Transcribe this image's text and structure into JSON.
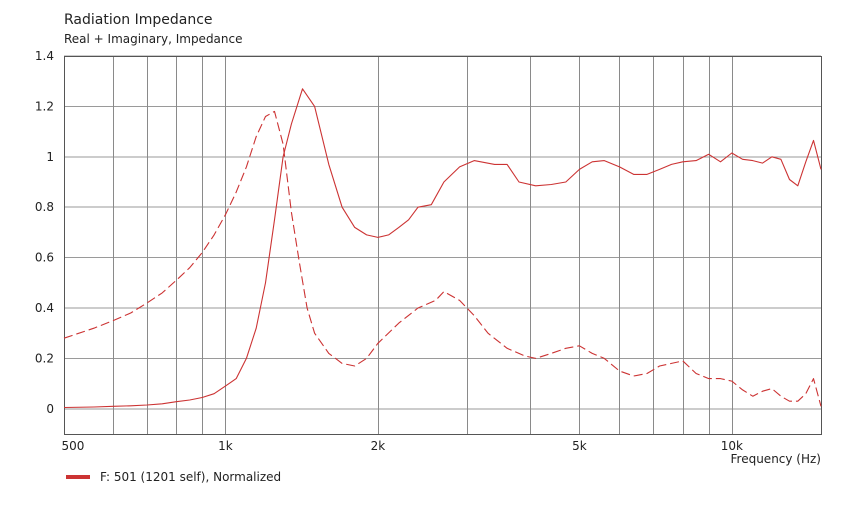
{
  "chart_data": {
    "type": "line",
    "title": "Radiation Impedance",
    "subtitle": "Real + Imaginary, Impedance",
    "xlabel": "Frequency  (Hz)",
    "ylabel": "",
    "x_scale": "log",
    "xlim": [
      480,
      15000
    ],
    "ylim": [
      -0.1,
      1.4
    ],
    "grid": true,
    "y_ticks": [
      {
        "value": 0,
        "label": "0"
      },
      {
        "value": 0.2,
        "label": "0.2"
      },
      {
        "value": 0.4,
        "label": "0.4"
      },
      {
        "value": 0.6,
        "label": "0.6"
      },
      {
        "value": 0.8,
        "label": "0.8"
      },
      {
        "value": 1.0,
        "label": "1"
      },
      {
        "value": 1.2,
        "label": "1.2"
      },
      {
        "value": 1.4,
        "label": "1.4"
      }
    ],
    "x_ticks": [
      {
        "value": 500,
        "label": "500"
      },
      {
        "value": 1000,
        "label": "1k"
      },
      {
        "value": 2000,
        "label": "2k"
      },
      {
        "value": 5000,
        "label": "5k"
      },
      {
        "value": 10000,
        "label": "10k"
      }
    ],
    "x_minor_grid": [
      600,
      700,
      800,
      900,
      1000,
      2000,
      3000,
      4000,
      5000,
      6000,
      7000,
      8000,
      9000,
      10000
    ],
    "line_color": "#cc3333",
    "legend": [
      {
        "label": "F: 501 (1201 self), Normalized",
        "color": "#cc3333"
      }
    ],
    "legend_position": "bottom-left",
    "series": [
      {
        "style": "solid",
        "points": [
          [
            480,
            0.005
          ],
          [
            550,
            0.007
          ],
          [
            600,
            0.01
          ],
          [
            650,
            0.012
          ],
          [
            700,
            0.015
          ],
          [
            750,
            0.02
          ],
          [
            800,
            0.028
          ],
          [
            850,
            0.035
          ],
          [
            900,
            0.045
          ],
          [
            950,
            0.06
          ],
          [
            1000,
            0.09
          ],
          [
            1050,
            0.12
          ],
          [
            1100,
            0.2
          ],
          [
            1150,
            0.32
          ],
          [
            1200,
            0.5
          ],
          [
            1250,
            0.75
          ],
          [
            1300,
            1.0
          ],
          [
            1350,
            1.13
          ],
          [
            1420,
            1.27
          ],
          [
            1500,
            1.2
          ],
          [
            1600,
            0.97
          ],
          [
            1700,
            0.8
          ],
          [
            1800,
            0.72
          ],
          [
            1900,
            0.69
          ],
          [
            2000,
            0.68
          ],
          [
            2100,
            0.69
          ],
          [
            2200,
            0.72
          ],
          [
            2300,
            0.75
          ],
          [
            2400,
            0.8
          ],
          [
            2550,
            0.81
          ],
          [
            2700,
            0.9
          ],
          [
            2900,
            0.96
          ],
          [
            3100,
            0.985
          ],
          [
            3400,
            0.97
          ],
          [
            3600,
            0.97
          ],
          [
            3800,
            0.9
          ],
          [
            4100,
            0.885
          ],
          [
            4400,
            0.89
          ],
          [
            4700,
            0.9
          ],
          [
            5000,
            0.95
          ],
          [
            5300,
            0.98
          ],
          [
            5600,
            0.985
          ],
          [
            6000,
            0.96
          ],
          [
            6400,
            0.93
          ],
          [
            6800,
            0.93
          ],
          [
            7200,
            0.95
          ],
          [
            7600,
            0.97
          ],
          [
            8000,
            0.98
          ],
          [
            8500,
            0.985
          ],
          [
            9000,
            1.01
          ],
          [
            9500,
            0.98
          ],
          [
            10000,
            1.015
          ],
          [
            10500,
            0.99
          ],
          [
            11000,
            0.985
          ],
          [
            11500,
            0.975
          ],
          [
            12000,
            1.0
          ],
          [
            12500,
            0.99
          ],
          [
            13000,
            0.91
          ],
          [
            13500,
            0.885
          ],
          [
            14000,
            0.98
          ],
          [
            14500,
            1.065
          ],
          [
            15000,
            0.95
          ]
        ]
      },
      {
        "style": "dashed",
        "points": [
          [
            480,
            0.28
          ],
          [
            550,
            0.32
          ],
          [
            600,
            0.35
          ],
          [
            650,
            0.38
          ],
          [
            700,
            0.42
          ],
          [
            750,
            0.46
          ],
          [
            800,
            0.51
          ],
          [
            850,
            0.56
          ],
          [
            900,
            0.62
          ],
          [
            950,
            0.69
          ],
          [
            1000,
            0.77
          ],
          [
            1050,
            0.86
          ],
          [
            1100,
            0.96
          ],
          [
            1150,
            1.08
          ],
          [
            1200,
            1.16
          ],
          [
            1250,
            1.18
          ],
          [
            1300,
            1.05
          ],
          [
            1350,
            0.78
          ],
          [
            1400,
            0.58
          ],
          [
            1450,
            0.4
          ],
          [
            1500,
            0.3
          ],
          [
            1600,
            0.22
          ],
          [
            1700,
            0.18
          ],
          [
            1800,
            0.17
          ],
          [
            1900,
            0.2
          ],
          [
            2000,
            0.26
          ],
          [
            2200,
            0.34
          ],
          [
            2400,
            0.4
          ],
          [
            2600,
            0.43
          ],
          [
            2700,
            0.465
          ],
          [
            2900,
            0.43
          ],
          [
            3100,
            0.37
          ],
          [
            3300,
            0.3
          ],
          [
            3600,
            0.24
          ],
          [
            3900,
            0.21
          ],
          [
            4100,
            0.2
          ],
          [
            4400,
            0.22
          ],
          [
            4700,
            0.24
          ],
          [
            5000,
            0.25
          ],
          [
            5300,
            0.22
          ],
          [
            5600,
            0.2
          ],
          [
            6000,
            0.15
          ],
          [
            6400,
            0.13
          ],
          [
            6800,
            0.14
          ],
          [
            7200,
            0.17
          ],
          [
            7600,
            0.18
          ],
          [
            8000,
            0.19
          ],
          [
            8500,
            0.14
          ],
          [
            9000,
            0.12
          ],
          [
            9500,
            0.12
          ],
          [
            10000,
            0.11
          ],
          [
            10500,
            0.075
          ],
          [
            11000,
            0.05
          ],
          [
            11500,
            0.07
          ],
          [
            12000,
            0.08
          ],
          [
            12500,
            0.05
          ],
          [
            13000,
            0.03
          ],
          [
            13500,
            0.03
          ],
          [
            14000,
            0.06
          ],
          [
            14500,
            0.12
          ],
          [
            15000,
            0.01
          ]
        ]
      }
    ]
  }
}
